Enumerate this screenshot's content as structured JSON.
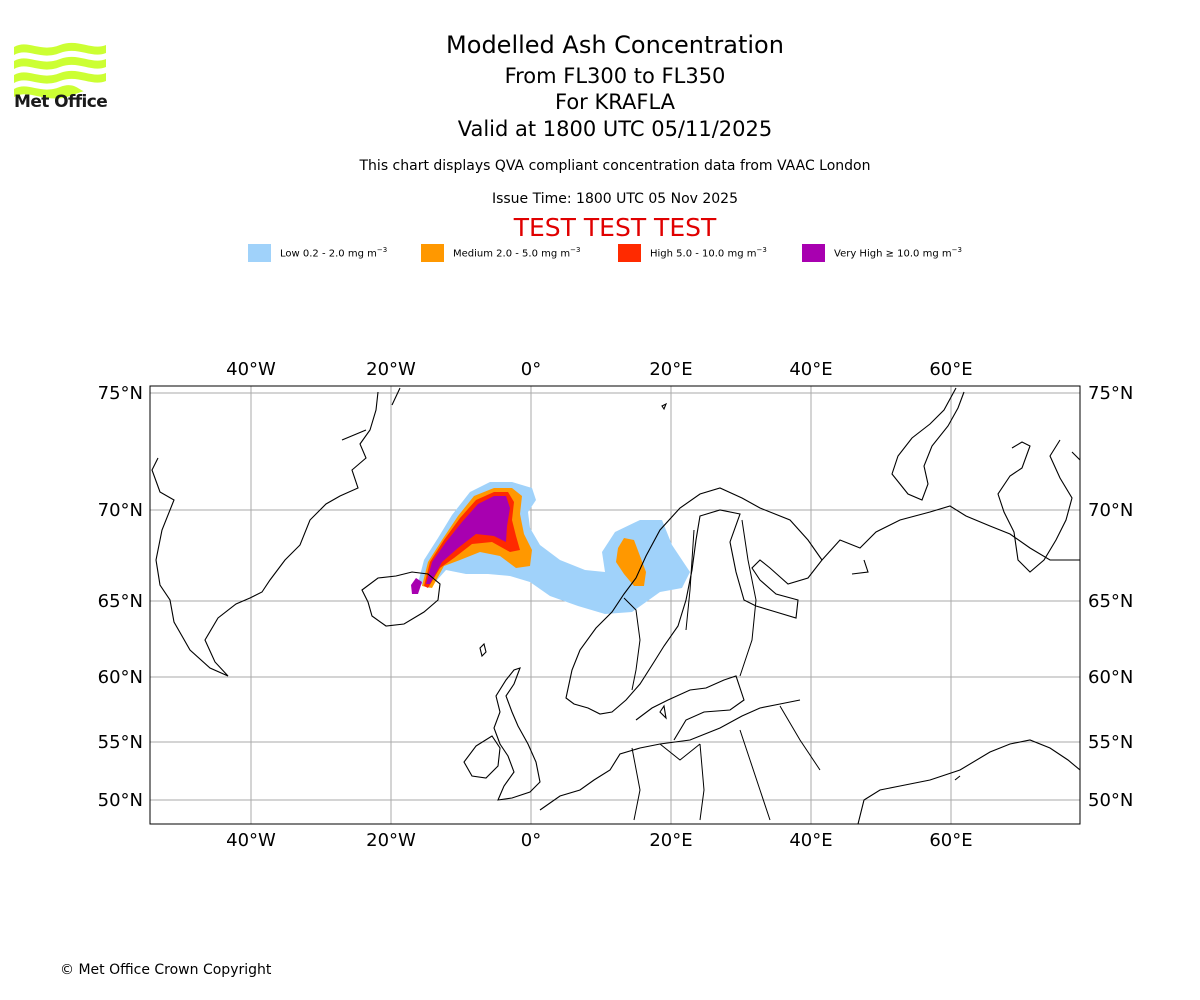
{
  "header": {
    "logo_text": "Met Office",
    "title": "Modelled Ash Concentration",
    "level_range": "From FL300 to FL350",
    "volcano": "For KRAFLA",
    "valid_time": "Valid at 1800 UTC 05/11/2025",
    "description": "This chart displays QVA compliant concentration data from VAAC London",
    "issue_time": "Issue Time: 1800 UTC 05 Nov 2025",
    "test_banner": "TEST TEST TEST"
  },
  "legend": [
    {
      "label": "Low 0.2 - 2.0 mg m",
      "unit_exp": "−3",
      "color": "#a0d2fa"
    },
    {
      "label": "Medium 2.0 - 5.0 mg m",
      "unit_exp": "−3",
      "color": "#ff9800"
    },
    {
      "label": "High 5.0 - 10.0 mg m",
      "unit_exp": "−3",
      "color": "#ff2a00"
    },
    {
      "label": "Very High ≥ 10.0 mg m",
      "unit_exp": "−3",
      "color": "#a800b0"
    }
  ],
  "map": {
    "lon_ticks": [
      "40°W",
      "20°W",
      "0°",
      "20°E",
      "40°E",
      "60°E"
    ],
    "lat_ticks": [
      "75°N",
      "70°N",
      "65°N",
      "60°N",
      "55°N",
      "50°N"
    ],
    "lon_values": [
      -40,
      -20,
      0,
      20,
      40,
      60
    ],
    "lat_values": [
      75,
      70,
      65,
      60,
      55,
      50
    ]
  },
  "footer": {
    "copyright": "© Met Office Crown Copyright"
  }
}
